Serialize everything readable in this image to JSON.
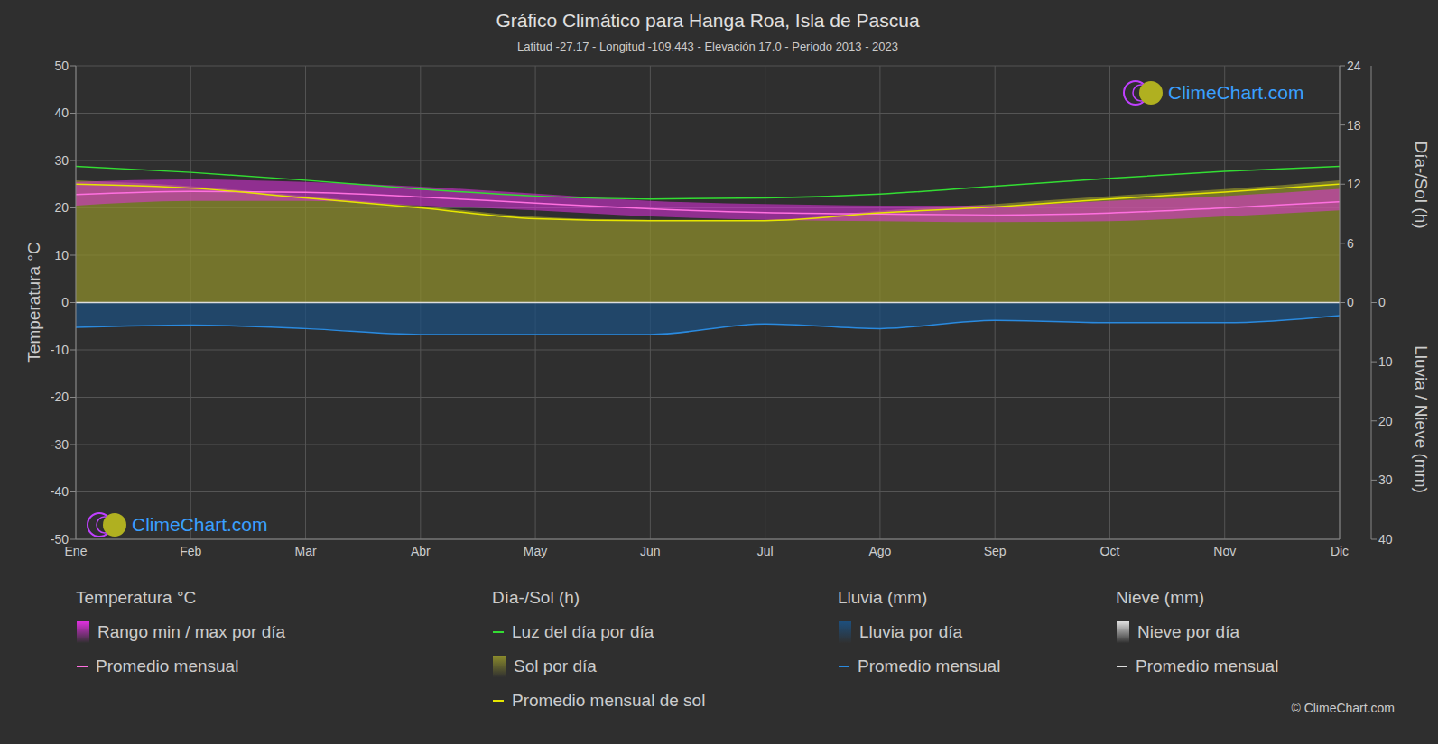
{
  "chart_data": {
    "type": "line",
    "title": "Gráfico Climático para Hanga Roa, Isla de Pascua",
    "subtitle": "Latitud -27.17 - Longitud -109.443 - Elevación 17.0 - Periodo 2013 - 2023",
    "categories": [
      "Ene",
      "Feb",
      "Mar",
      "Abr",
      "May",
      "Jun",
      "Jul",
      "Ago",
      "Sep",
      "Oct",
      "Nov",
      "Dic"
    ],
    "ylabel": "Temperatura °C",
    "y2label": "Día-/Sol (h)",
    "y3label": "Lluvia / Nieve (mm)",
    "ylim": [
      -50,
      50
    ],
    "yticks": [
      -50,
      -40,
      -30,
      -20,
      -10,
      0,
      10,
      20,
      30,
      40,
      50
    ],
    "y2lim": [
      -24,
      24
    ],
    "y2ticks": [
      0,
      6,
      12,
      18,
      24
    ],
    "y3lim": [
      -40,
      40
    ],
    "y3ticks": [
      0,
      10,
      20,
      30,
      40
    ],
    "grid": true,
    "legend_groups": [
      "Temperatura °C",
      "Día-/Sol (h)",
      "Lluvia (mm)",
      "Nieve (mm)"
    ],
    "series": [
      {
        "name": "Rango min / max por día",
        "group": "Temperatura °C",
        "type": "range",
        "color": "#e030e0",
        "values": [
          [
            20.5,
            25.5
          ],
          [
            21.5,
            26
          ],
          [
            21.5,
            25.5
          ],
          [
            20.5,
            24.5
          ],
          [
            19.5,
            23
          ],
          [
            18.2,
            21.5
          ],
          [
            17.5,
            20.8
          ],
          [
            17.2,
            20.5
          ],
          [
            17,
            20.5
          ],
          [
            17.2,
            21.5
          ],
          [
            18.2,
            22.5
          ],
          [
            19.5,
            24
          ]
        ]
      },
      {
        "name": "Promedio mensual",
        "group": "Temperatura °C",
        "type": "line",
        "color": "#ff70e0",
        "values": [
          22.8,
          23.5,
          23.3,
          22.3,
          21.0,
          19.8,
          19.0,
          18.7,
          18.5,
          18.9,
          20.0,
          21.3
        ]
      },
      {
        "name": "Luz del día por día",
        "group": "Día-/Sol (h)",
        "type": "line",
        "color": "#33dd33",
        "axis": "y2",
        "values": [
          13.8,
          13.2,
          12.4,
          11.5,
          10.8,
          10.5,
          10.6,
          11.0,
          11.8,
          12.6,
          13.3,
          13.8
        ]
      },
      {
        "name": "Sol por día",
        "group": "Día-/Sol (h)",
        "type": "area",
        "color": "#8c8c2c",
        "axis": "y2",
        "values": [
          12.4,
          11.8,
          10.8,
          9.8,
          8.7,
          8.4,
          8.4,
          9.3,
          10.0,
          10.8,
          11.5,
          12.4
        ]
      },
      {
        "name": "Promedio mensual de sol",
        "group": "Día-/Sol (h)",
        "type": "line",
        "color": "#e6e600",
        "axis": "y2",
        "values": [
          12.0,
          11.6,
          10.6,
          9.6,
          8.5,
          8.3,
          8.3,
          9.1,
          9.7,
          10.5,
          11.2,
          12.0
        ]
      },
      {
        "name": "Lluvia por día",
        "group": "Lluvia (mm)",
        "type": "area",
        "color": "#1d4f7d",
        "axis": "y3",
        "values": [
          4.2,
          3.8,
          4.4,
          5.4,
          5.4,
          5.4,
          3.6,
          4.4,
          3.0,
          3.4,
          3.4,
          2.2
        ]
      },
      {
        "name": "Promedio mensual",
        "group": "Lluvia (mm)",
        "type": "line",
        "color": "#2a8adf",
        "axis": "y3",
        "values": [
          4.2,
          3.8,
          4.4,
          5.4,
          5.4,
          5.4,
          3.6,
          4.4,
          3.0,
          3.4,
          3.4,
          2.2
        ]
      },
      {
        "name": "Nieve por día",
        "group": "Nieve (mm)",
        "type": "area",
        "color": "#e0e0e0",
        "axis": "y3",
        "values": [
          0,
          0,
          0,
          0,
          0,
          0,
          0,
          0,
          0,
          0,
          0,
          0
        ]
      },
      {
        "name": "Promedio mensual",
        "group": "Nieve (mm)",
        "type": "line",
        "color": "#dddddd",
        "axis": "y3",
        "values": [
          0,
          0,
          0,
          0,
          0,
          0,
          0,
          0,
          0,
          0,
          0,
          0
        ]
      }
    ],
    "watermark": "ClimeChart.com",
    "copyright": "© ClimeChart.com"
  }
}
